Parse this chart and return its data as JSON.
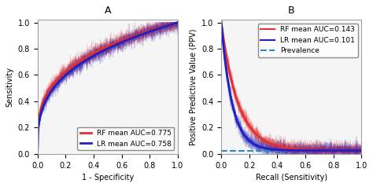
{
  "title_A": "A",
  "title_B": "B",
  "xlabel_A": "1 - Specificity",
  "ylabel_A": "Sensitivity",
  "xlabel_B": "Recall (Sensitivity)",
  "ylabel_B": "Positive Predictive Value (PPV)",
  "legend_A": [
    {
      "label": "RF mean AUC=0.775",
      "color": "#e03030",
      "lw": 2.0
    },
    {
      "label": "LR mean AUC=0.758",
      "color": "#2020c0",
      "lw": 2.0
    }
  ],
  "legend_B": [
    {
      "label": "RF mean AUC=0.143",
      "color": "#e03030",
      "lw": 2.0
    },
    {
      "label": "LR mean AUC=0.101",
      "color": "#2020c0",
      "lw": 2.0
    },
    {
      "label": "Prevalence",
      "color": "#2090c0",
      "lw": 1.5,
      "linestyle": "--"
    }
  ],
  "rf_auc_roc": 0.775,
  "lr_auc_roc": 0.758,
  "rf_auc_pr": 0.143,
  "lr_auc_pr": 0.101,
  "prevalence": 0.025,
  "n_folds": 10,
  "rf_color": "#e03030",
  "lr_color": "#2020c0",
  "rf_alpha_fold": 0.18,
  "lr_alpha_fold": 0.18,
  "rf_alpha_mean": 1.0,
  "lr_alpha_mean": 1.0,
  "bg_color": "#f5f5f5",
  "tick_fontsize": 7,
  "label_fontsize": 7,
  "legend_fontsize": 6.5,
  "title_fontsize": 9
}
